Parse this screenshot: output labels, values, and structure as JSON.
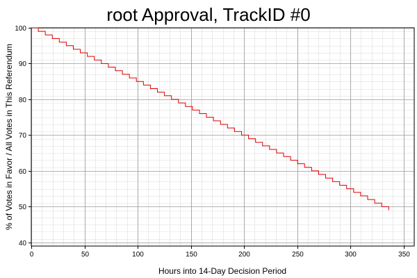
{
  "chart_data": {
    "type": "line",
    "title": "root Approval, TrackID #0",
    "xlabel": "Hours into 14-Day Decision Period",
    "ylabel": "% of Votes in Favor / All Votes in This Referendum",
    "xlim": [
      0,
      360
    ],
    "ylim": [
      39,
      100
    ],
    "x_ticks": [
      0,
      50,
      100,
      150,
      200,
      250,
      300,
      350
    ],
    "y_ticks": [
      40,
      50,
      60,
      70,
      80,
      90,
      100
    ],
    "x_minor_step": 10,
    "y_minor_step": 2,
    "grid": true,
    "series": [
      {
        "color": "#e00000",
        "x": [
          0,
          336
        ],
        "y": [
          100,
          49
        ],
        "step": "staircase",
        "step_size": 1
      }
    ]
  }
}
